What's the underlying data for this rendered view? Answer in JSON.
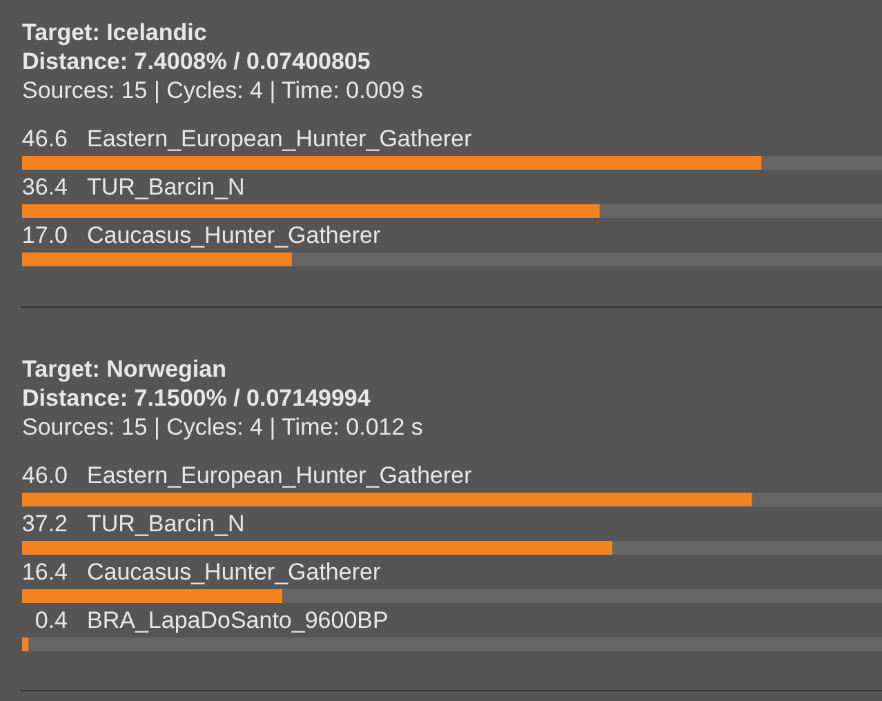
{
  "chart_data": [
    {
      "type": "bar",
      "orientation": "horizontal",
      "title": "Target: Icelandic",
      "subtitle": "Distance: 7.4008% / 0.07400805",
      "annotations": [
        "Sources: 15 | Cycles: 4 | Time: 0.009 s"
      ],
      "categories": [
        "Eastern_European_Hunter_Gatherer",
        "TUR_Barcin_N",
        "Caucasus_Hunter_Gatherer"
      ],
      "values": [
        46.6,
        36.4,
        17.0
      ],
      "value_labels": [
        "46.6",
        "36.4",
        "17.0"
      ],
      "color": "#f58220",
      "xlim": [
        0,
        54.2
      ],
      "tick_labels": "y"
    },
    {
      "type": "bar",
      "orientation": "horizontal",
      "title": "Target: Norwegian",
      "subtitle": "Distance: 7.1500% / 0.07149994",
      "annotations": [
        "Sources: 15 | Cycles: 4 | Time: 0.012 s"
      ],
      "categories": [
        "Eastern_European_Hunter_Gatherer",
        "TUR_Barcin_N",
        "Caucasus_Hunter_Gatherer",
        "BRA_LapaDoSanto_9600BP"
      ],
      "values": [
        46.0,
        37.2,
        16.4,
        0.4
      ],
      "value_labels": [
        "46.0",
        "37.2",
        "16.4",
        "0.4"
      ],
      "color": "#f58220",
      "xlim": [
        0,
        54.2
      ],
      "tick_labels": "y"
    }
  ]
}
